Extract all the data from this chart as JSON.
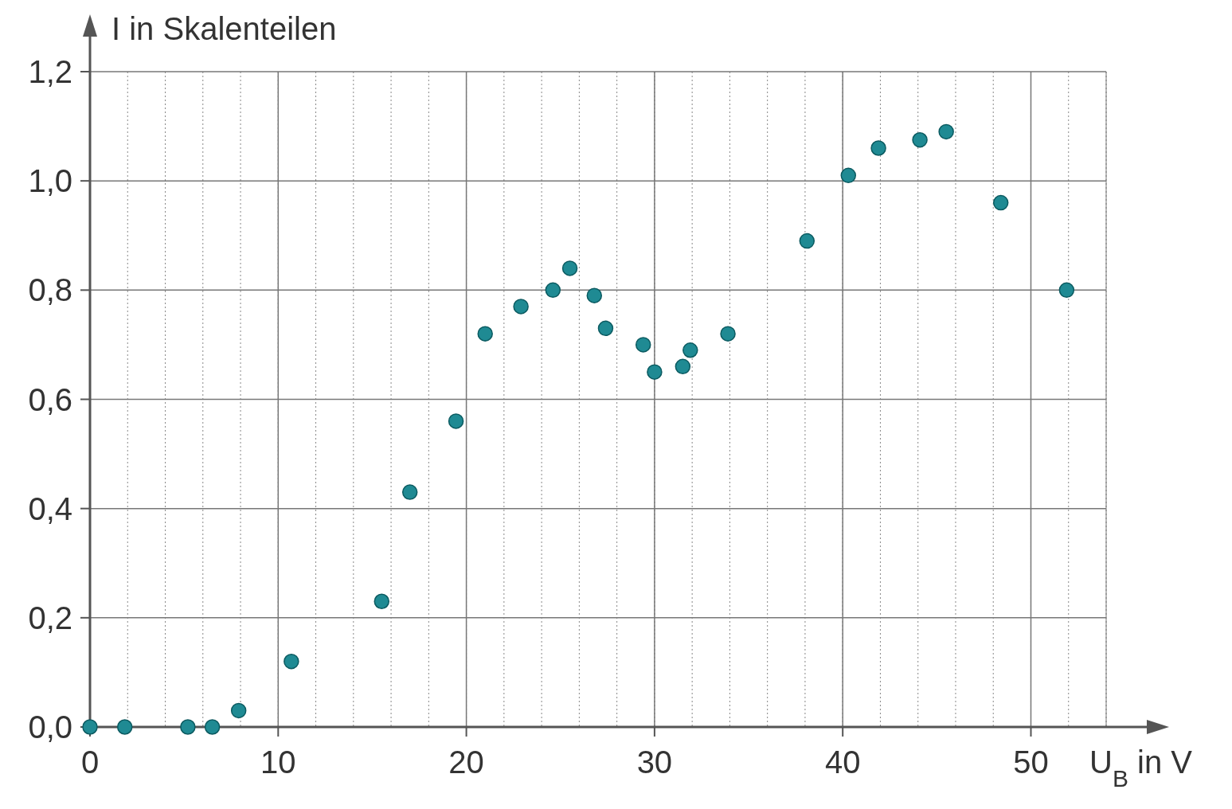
{
  "chart_data": {
    "type": "scatter",
    "xlabel": "U$_{B}$ in V",
    "ylabel": "I in Skalenteilen",
    "x": [
      0,
      1.85,
      5.2,
      6.5,
      7.9,
      10.7,
      15.5,
      17.0,
      19.45,
      21.0,
      22.9,
      24.6,
      25.5,
      26.8,
      27.4,
      29.4,
      30.0,
      31.5,
      31.9,
      33.9,
      38.1,
      40.3,
      41.9,
      44.1,
      45.5,
      48.4,
      51.9
    ],
    "series": [
      {
        "color": "#1f8a93",
        "values": [
          0,
          0,
          0,
          0,
          0.03,
          0.12,
          0.23,
          0.43,
          0.56,
          0.72,
          0.77,
          0.8,
          0.84,
          0.79,
          0.73,
          0.7,
          0.65,
          0.66,
          0.69,
          0.72,
          0.89,
          1.01,
          1.06,
          1.075,
          1.09,
          0.96,
          0.8
        ]
      }
    ],
    "xlim": [
      0,
      54
    ],
    "ylim": [
      0,
      1.2
    ],
    "xticks": [
      0,
      10,
      20,
      30,
      40,
      50
    ],
    "yticks": [
      {
        "value": 0,
        "label": "0,0"
      },
      {
        "value": 0.2,
        "label": "0,2"
      },
      {
        "value": 0.4,
        "label": "0,4"
      },
      {
        "value": 0.6,
        "label": "0,6"
      },
      {
        "value": 0.8,
        "label": "0,8"
      },
      {
        "value": 1.0,
        "label": "1,0"
      },
      {
        "value": 1.2,
        "label": "1,2"
      }
    ],
    "grid": true,
    "marker": "circle"
  }
}
